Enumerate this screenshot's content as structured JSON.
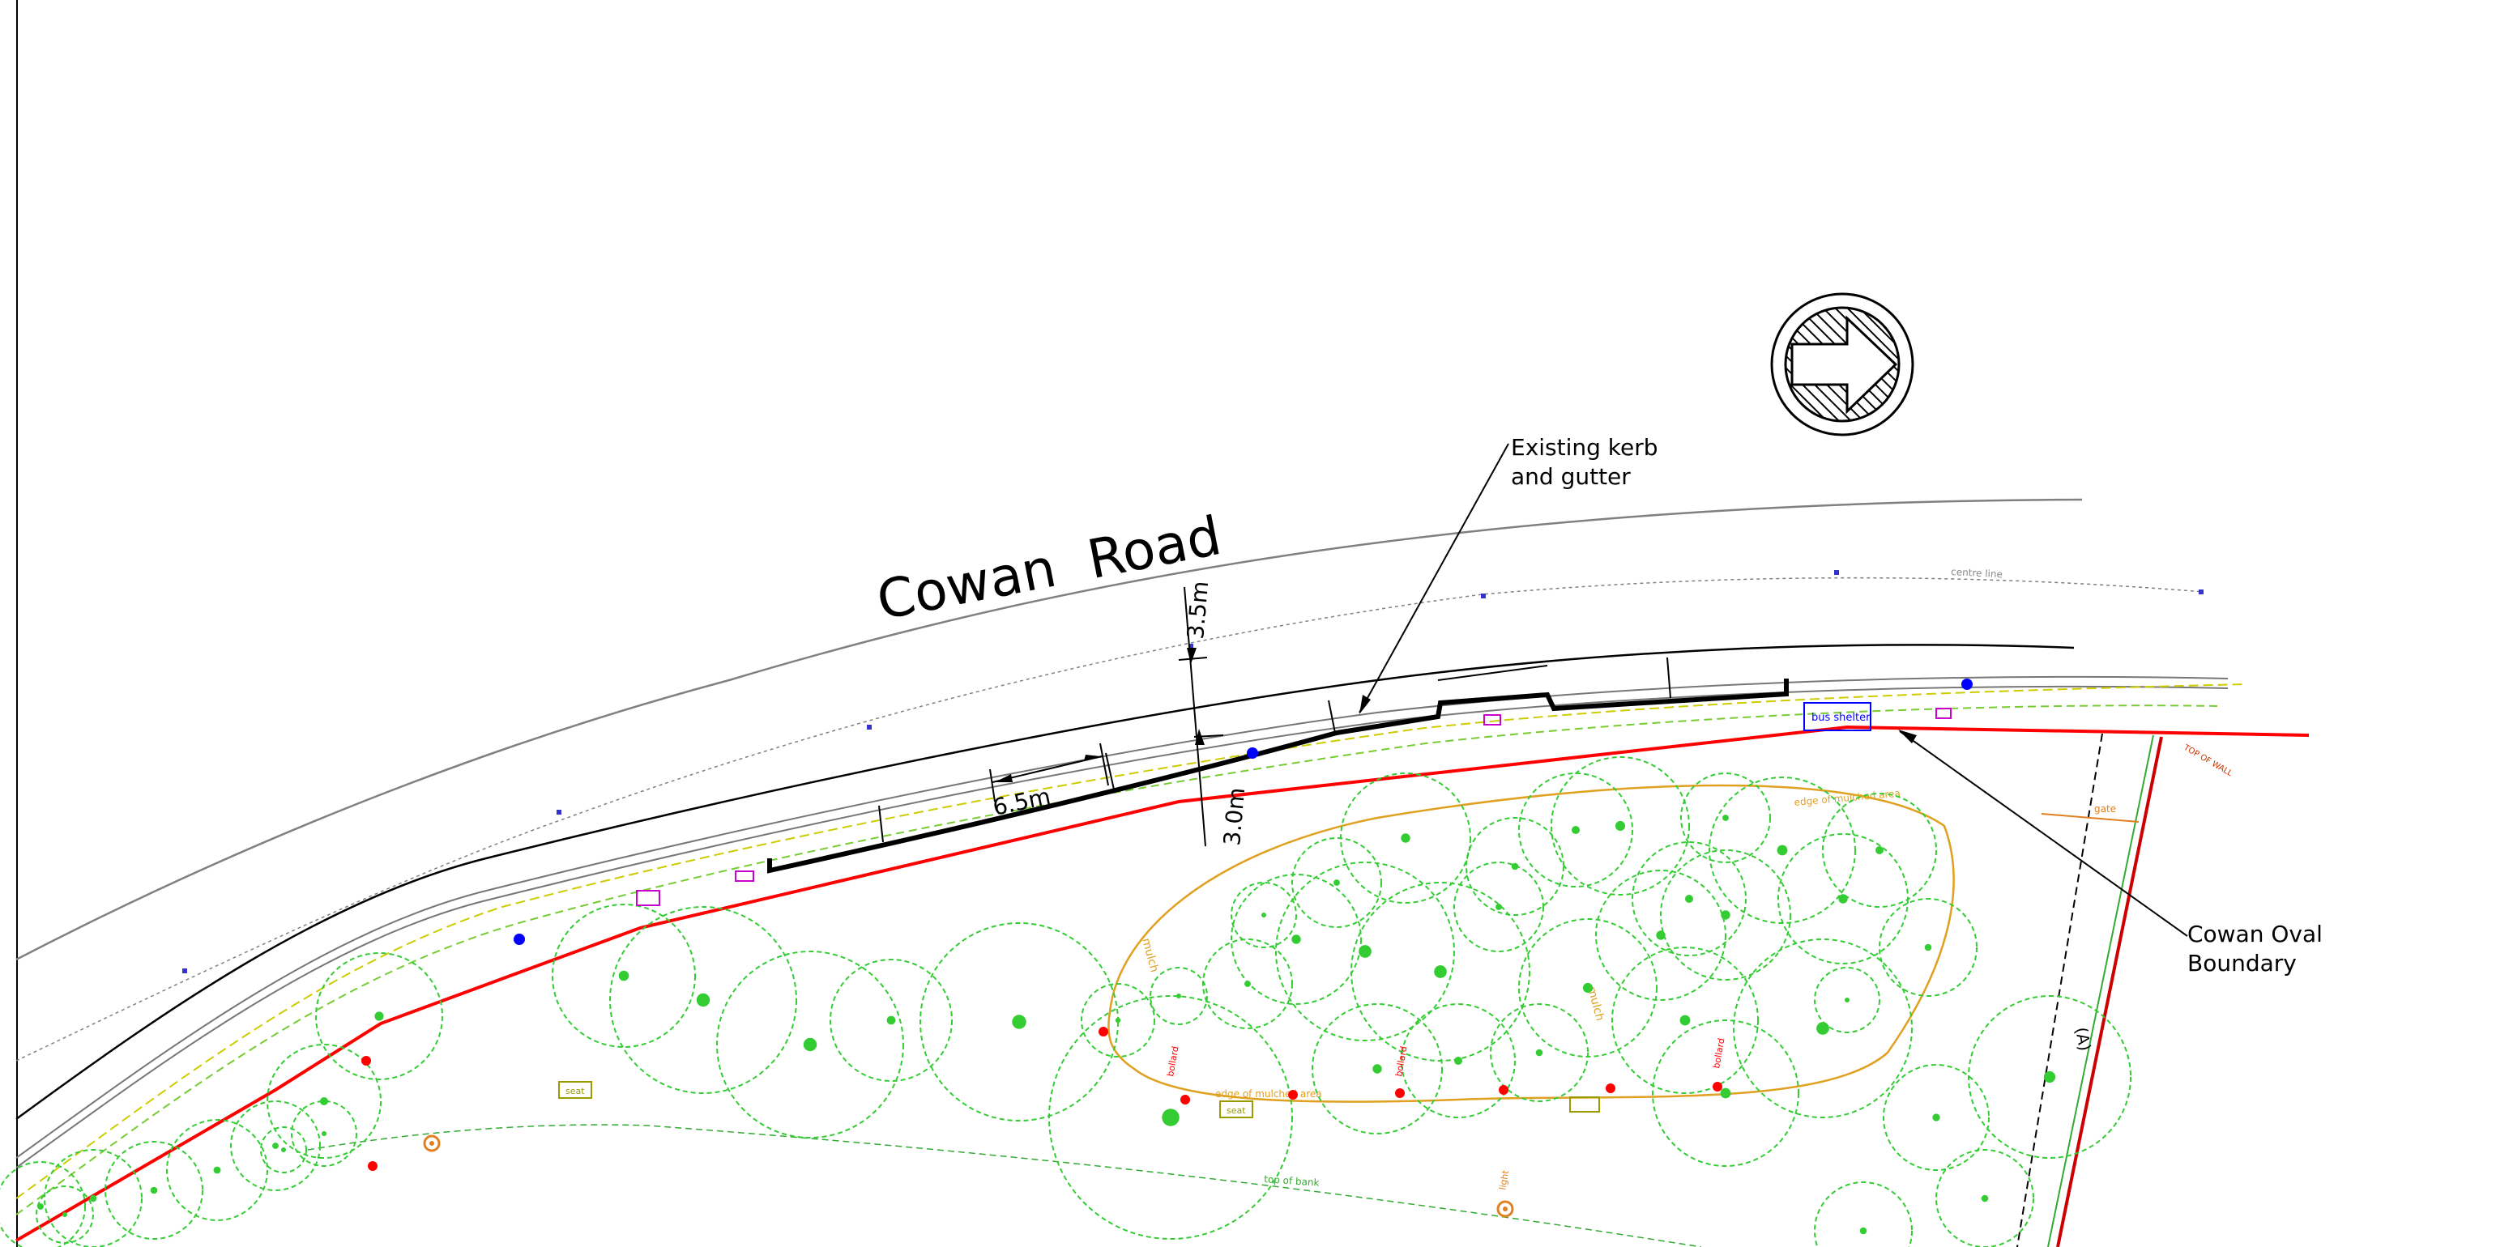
{
  "road": {
    "name": "Cowan  Road"
  },
  "callouts": {
    "kerb_line1": "Existing kerb",
    "kerb_line2": "and gutter",
    "boundary_line1": "Cowan Oval",
    "boundary_line2": "Boundary"
  },
  "dimensions": {
    "d1": "3.5m",
    "d2": "3.0m",
    "d3": "6.5m"
  },
  "features": {
    "bus_shelter": "bus shelter",
    "seat": "seat",
    "gate": "gate",
    "marker_a": "(A)",
    "centre_line": "centre line",
    "mulch": "mulch",
    "edge_mulched": "edge of mulched area",
    "top_of_bank": "top of bank",
    "bollard": "bollard",
    "light": "light",
    "wall": "TOP OF WALL"
  },
  "colors": {
    "boundary": "#ff0000",
    "trees": "#33cc33",
    "mulch": "#e0a020",
    "kerb": "#000000",
    "road_line": "#808080",
    "service": "#0000ff",
    "dimension": "#000000"
  },
  "icons": {
    "north_arrow": "north-arrow-icon"
  }
}
